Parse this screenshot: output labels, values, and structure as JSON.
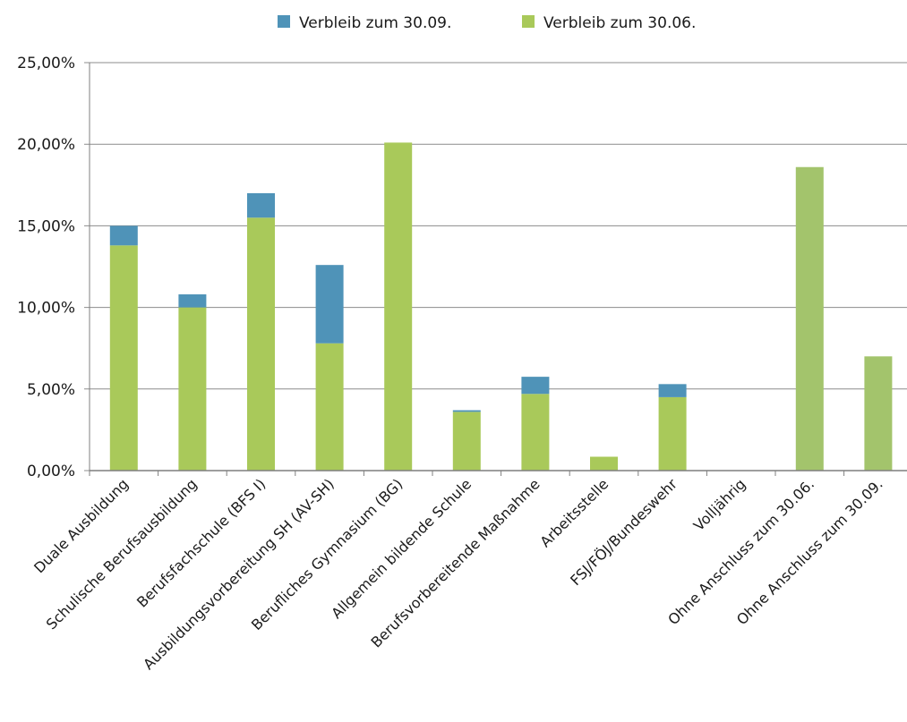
{
  "chart_data": {
    "type": "bar",
    "stacked": true,
    "categories": [
      "Duale Ausbildung",
      "Schulische Berufsausbildung",
      "Berufsfachschule (BFS I)",
      "Ausbildungsvorbereitung SH (AV-SH)",
      "Berufliches Gymnasium (BG)",
      "Allgemein bildende Schule",
      "Berufsvorbereitende Maßnahme",
      "Arbeitsstelle",
      "FSJ/FÖJ/Bundeswehr",
      "Volljährig",
      "Ohne Anschluss zum 30.06.",
      "Ohne Anschluss zum 30.09."
    ],
    "series": [
      {
        "name": "Verbleib zum 30.06.",
        "color": "#a9c95a",
        "values": [
          13.8,
          10.0,
          15.5,
          7.8,
          20.1,
          3.6,
          4.7,
          0.85,
          4.5,
          0,
          0,
          0
        ]
      },
      {
        "name": "Verbleib zum 30.09.",
        "color": "#4f93b8",
        "values": [
          1.2,
          0.8,
          1.5,
          4.8,
          0,
          0.1,
          1.05,
          0,
          0.8,
          0,
          0,
          0
        ]
      },
      {
        "name": "",
        "color": "#a3c46c",
        "values": [
          0,
          0,
          0,
          0,
          0,
          0,
          0,
          0,
          0,
          0,
          18.6,
          7.0
        ]
      }
    ],
    "y_ticks": [
      "0,00%",
      "5,00%",
      "10,00%",
      "15,00%",
      "20,00%",
      "25,00%"
    ],
    "ylim": [
      0,
      25
    ],
    "grid": true,
    "legend_position": "top-center",
    "legend": [
      {
        "label": "Verbleib zum 30.09.",
        "color": "#4f93b8"
      },
      {
        "label": "Verbleib zum 30.06.",
        "color": "#a9c95a"
      }
    ],
    "title": "",
    "xlabel": "",
    "ylabel": ""
  }
}
